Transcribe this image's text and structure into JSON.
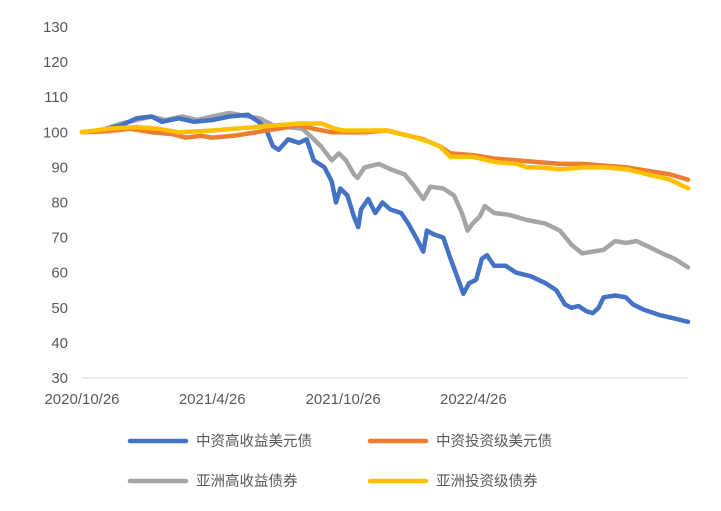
{
  "chart_data": {
    "type": "line",
    "title": "",
    "xlabel": "",
    "ylabel": "",
    "ylim": [
      30,
      130
    ],
    "yticks": [
      30,
      40,
      50,
      60,
      70,
      80,
      90,
      100,
      110,
      120,
      130
    ],
    "xlim": [
      "2020-10-26",
      "2023-02-20"
    ],
    "xtick_labels": [
      "2020/10/26",
      "2021/4/26",
      "2021/10/26",
      "2022/4/26"
    ],
    "xtick_dates": [
      "2020-10-26",
      "2021-04-26",
      "2021-10-26",
      "2022-04-26"
    ],
    "grid": false,
    "legend_position": "bottom",
    "series": [
      {
        "name": "中资高收益美元债",
        "color": "#4472C4",
        "points": [
          [
            "2020-10-26",
            100
          ],
          [
            "2020-11-20",
            100.5
          ],
          [
            "2020-12-20",
            102
          ],
          [
            "2021-01-10",
            104
          ],
          [
            "2021-01-31",
            104.5
          ],
          [
            "2021-02-15",
            103
          ],
          [
            "2021-03-10",
            104
          ],
          [
            "2021-04-01",
            103
          ],
          [
            "2021-04-26",
            103.5
          ],
          [
            "2021-05-20",
            104.5
          ],
          [
            "2021-06-15",
            105
          ],
          [
            "2021-06-30",
            103
          ],
          [
            "2021-07-10",
            101
          ],
          [
            "2021-07-20",
            96
          ],
          [
            "2021-07-28",
            95
          ],
          [
            "2021-08-10",
            98
          ],
          [
            "2021-08-25",
            97
          ],
          [
            "2021-09-05",
            98
          ],
          [
            "2021-09-15",
            92
          ],
          [
            "2021-09-30",
            90
          ],
          [
            "2021-10-10",
            86
          ],
          [
            "2021-10-16",
            80
          ],
          [
            "2021-10-22",
            84
          ],
          [
            "2021-11-01",
            82
          ],
          [
            "2021-11-10",
            76
          ],
          [
            "2021-11-16",
            73
          ],
          [
            "2021-11-20",
            78
          ],
          [
            "2021-11-30",
            81
          ],
          [
            "2021-12-10",
            77
          ],
          [
            "2021-12-20",
            80
          ],
          [
            "2021-12-31",
            78
          ],
          [
            "2022-01-15",
            77
          ],
          [
            "2022-01-25",
            74
          ],
          [
            "2022-02-05",
            70
          ],
          [
            "2022-02-15",
            66
          ],
          [
            "2022-02-20",
            72
          ],
          [
            "2022-03-01",
            71
          ],
          [
            "2022-03-15",
            70
          ],
          [
            "2022-03-25",
            64
          ],
          [
            "2022-04-05",
            58
          ],
          [
            "2022-04-12",
            54
          ],
          [
            "2022-04-20",
            57
          ],
          [
            "2022-04-30",
            58
          ],
          [
            "2022-05-08",
            64
          ],
          [
            "2022-05-15",
            65
          ],
          [
            "2022-05-25",
            62
          ],
          [
            "2022-06-10",
            62
          ],
          [
            "2022-06-25",
            60
          ],
          [
            "2022-07-15",
            59
          ],
          [
            "2022-08-05",
            57
          ],
          [
            "2022-08-20",
            55
          ],
          [
            "2022-09-01",
            51
          ],
          [
            "2022-09-10",
            50
          ],
          [
            "2022-09-20",
            50.5
          ],
          [
            "2022-10-01",
            49
          ],
          [
            "2022-10-10",
            48.5
          ],
          [
            "2022-10-18",
            50
          ],
          [
            "2022-10-25",
            53
          ],
          [
            "2022-11-10",
            53.5
          ],
          [
            "2022-11-25",
            53
          ],
          [
            "2022-12-05",
            51
          ],
          [
            "2022-12-20",
            49.5
          ],
          [
            "2023-01-10",
            48
          ],
          [
            "2023-01-31",
            47
          ],
          [
            "2023-02-20",
            46
          ]
        ]
      },
      {
        "name": "中资投资级美元债",
        "color": "#ED7D31",
        "points": [
          [
            "2020-10-26",
            100
          ],
          [
            "2020-12-01",
            100.3
          ],
          [
            "2021-01-01",
            101
          ],
          [
            "2021-02-01",
            100
          ],
          [
            "2021-03-01",
            99.5
          ],
          [
            "2021-03-20",
            98.5
          ],
          [
            "2021-04-10",
            99
          ],
          [
            "2021-04-26",
            98.5
          ],
          [
            "2021-05-26",
            99
          ],
          [
            "2021-06-26",
            100
          ],
          [
            "2021-07-26",
            101
          ],
          [
            "2021-08-26",
            102
          ],
          [
            "2021-09-15",
            101
          ],
          [
            "2021-10-10",
            100
          ],
          [
            "2021-10-26",
            100
          ],
          [
            "2021-11-26",
            100
          ],
          [
            "2021-12-26",
            100.5
          ],
          [
            "2022-01-26",
            99
          ],
          [
            "2022-02-15",
            98
          ],
          [
            "2022-03-10",
            96
          ],
          [
            "2022-03-25",
            94
          ],
          [
            "2022-04-26",
            93.5
          ],
          [
            "2022-05-26",
            92.5
          ],
          [
            "2022-06-26",
            92
          ],
          [
            "2022-07-26",
            91.5
          ],
          [
            "2022-08-26",
            91
          ],
          [
            "2022-09-26",
            91
          ],
          [
            "2022-10-26",
            90.5
          ],
          [
            "2022-11-26",
            90
          ],
          [
            "2022-12-26",
            89
          ],
          [
            "2023-01-26",
            88
          ],
          [
            "2023-02-20",
            86.5
          ]
        ]
      },
      {
        "name": "亚洲高收益债券",
        "color": "#A5A5A5",
        "points": [
          [
            "2020-10-26",
            100
          ],
          [
            "2020-11-20",
            100.5
          ],
          [
            "2020-12-20",
            102.5
          ],
          [
            "2021-01-31",
            104.5
          ],
          [
            "2021-02-20",
            103.5
          ],
          [
            "2021-03-15",
            104.5
          ],
          [
            "2021-04-05",
            103.5
          ],
          [
            "2021-04-26",
            104.5
          ],
          [
            "2021-05-20",
            105.5
          ],
          [
            "2021-06-15",
            104.5
          ],
          [
            "2021-07-01",
            104
          ],
          [
            "2021-07-20",
            102
          ],
          [
            "2021-08-10",
            101.5
          ],
          [
            "2021-08-30",
            101
          ],
          [
            "2021-09-10",
            99
          ],
          [
            "2021-09-25",
            96
          ],
          [
            "2021-10-10",
            92
          ],
          [
            "2021-10-20",
            94
          ],
          [
            "2021-10-30",
            92
          ],
          [
            "2021-11-10",
            88
          ],
          [
            "2021-11-15",
            87
          ],
          [
            "2021-11-25",
            90
          ],
          [
            "2021-12-15",
            91
          ],
          [
            "2021-12-31",
            89.5
          ],
          [
            "2022-01-20",
            88
          ],
          [
            "2022-02-01",
            85
          ],
          [
            "2022-02-15",
            81
          ],
          [
            "2022-02-25",
            84.5
          ],
          [
            "2022-03-15",
            84
          ],
          [
            "2022-03-30",
            82
          ],
          [
            "2022-04-10",
            77
          ],
          [
            "2022-04-18",
            72
          ],
          [
            "2022-04-25",
            74
          ],
          [
            "2022-05-05",
            76
          ],
          [
            "2022-05-12",
            79
          ],
          [
            "2022-05-25",
            77
          ],
          [
            "2022-06-15",
            76.5
          ],
          [
            "2022-07-10",
            75
          ],
          [
            "2022-08-05",
            74
          ],
          [
            "2022-08-25",
            72
          ],
          [
            "2022-09-10",
            68
          ],
          [
            "2022-09-25",
            65.5
          ],
          [
            "2022-10-10",
            66
          ],
          [
            "2022-10-25",
            66.5
          ],
          [
            "2022-11-10",
            69
          ],
          [
            "2022-11-25",
            68.5
          ],
          [
            "2022-12-10",
            69
          ],
          [
            "2022-12-31",
            67
          ],
          [
            "2023-01-15",
            65.5
          ],
          [
            "2023-02-01",
            64
          ],
          [
            "2023-02-20",
            61.5
          ]
        ]
      },
      {
        "name": "亚洲投资级债券",
        "color": "#FFC000",
        "points": [
          [
            "2020-10-26",
            100
          ],
          [
            "2020-12-01",
            101
          ],
          [
            "2021-01-10",
            101.5
          ],
          [
            "2021-02-10",
            101
          ],
          [
            "2021-03-10",
            100
          ],
          [
            "2021-04-10",
            100.3
          ],
          [
            "2021-04-26",
            100.5
          ],
          [
            "2021-05-26",
            101
          ],
          [
            "2021-06-26",
            101.5
          ],
          [
            "2021-07-26",
            102
          ],
          [
            "2021-08-26",
            102.5
          ],
          [
            "2021-09-26",
            102.5
          ],
          [
            "2021-10-15",
            101
          ],
          [
            "2021-10-26",
            100.5
          ],
          [
            "2021-11-26",
            100.5
          ],
          [
            "2021-12-26",
            100.5
          ],
          [
            "2022-01-26",
            99
          ],
          [
            "2022-02-20",
            97.5
          ],
          [
            "2022-03-10",
            96
          ],
          [
            "2022-03-25",
            93
          ],
          [
            "2022-04-26",
            93
          ],
          [
            "2022-05-26",
            91.5
          ],
          [
            "2022-06-26",
            91
          ],
          [
            "2022-07-10",
            90
          ],
          [
            "2022-07-26",
            90
          ],
          [
            "2022-08-26",
            89.5
          ],
          [
            "2022-09-26",
            90
          ],
          [
            "2022-10-26",
            90
          ],
          [
            "2022-11-26",
            89.5
          ],
          [
            "2022-12-26",
            88
          ],
          [
            "2023-01-26",
            86.5
          ],
          [
            "2023-02-20",
            84
          ]
        ]
      }
    ]
  }
}
